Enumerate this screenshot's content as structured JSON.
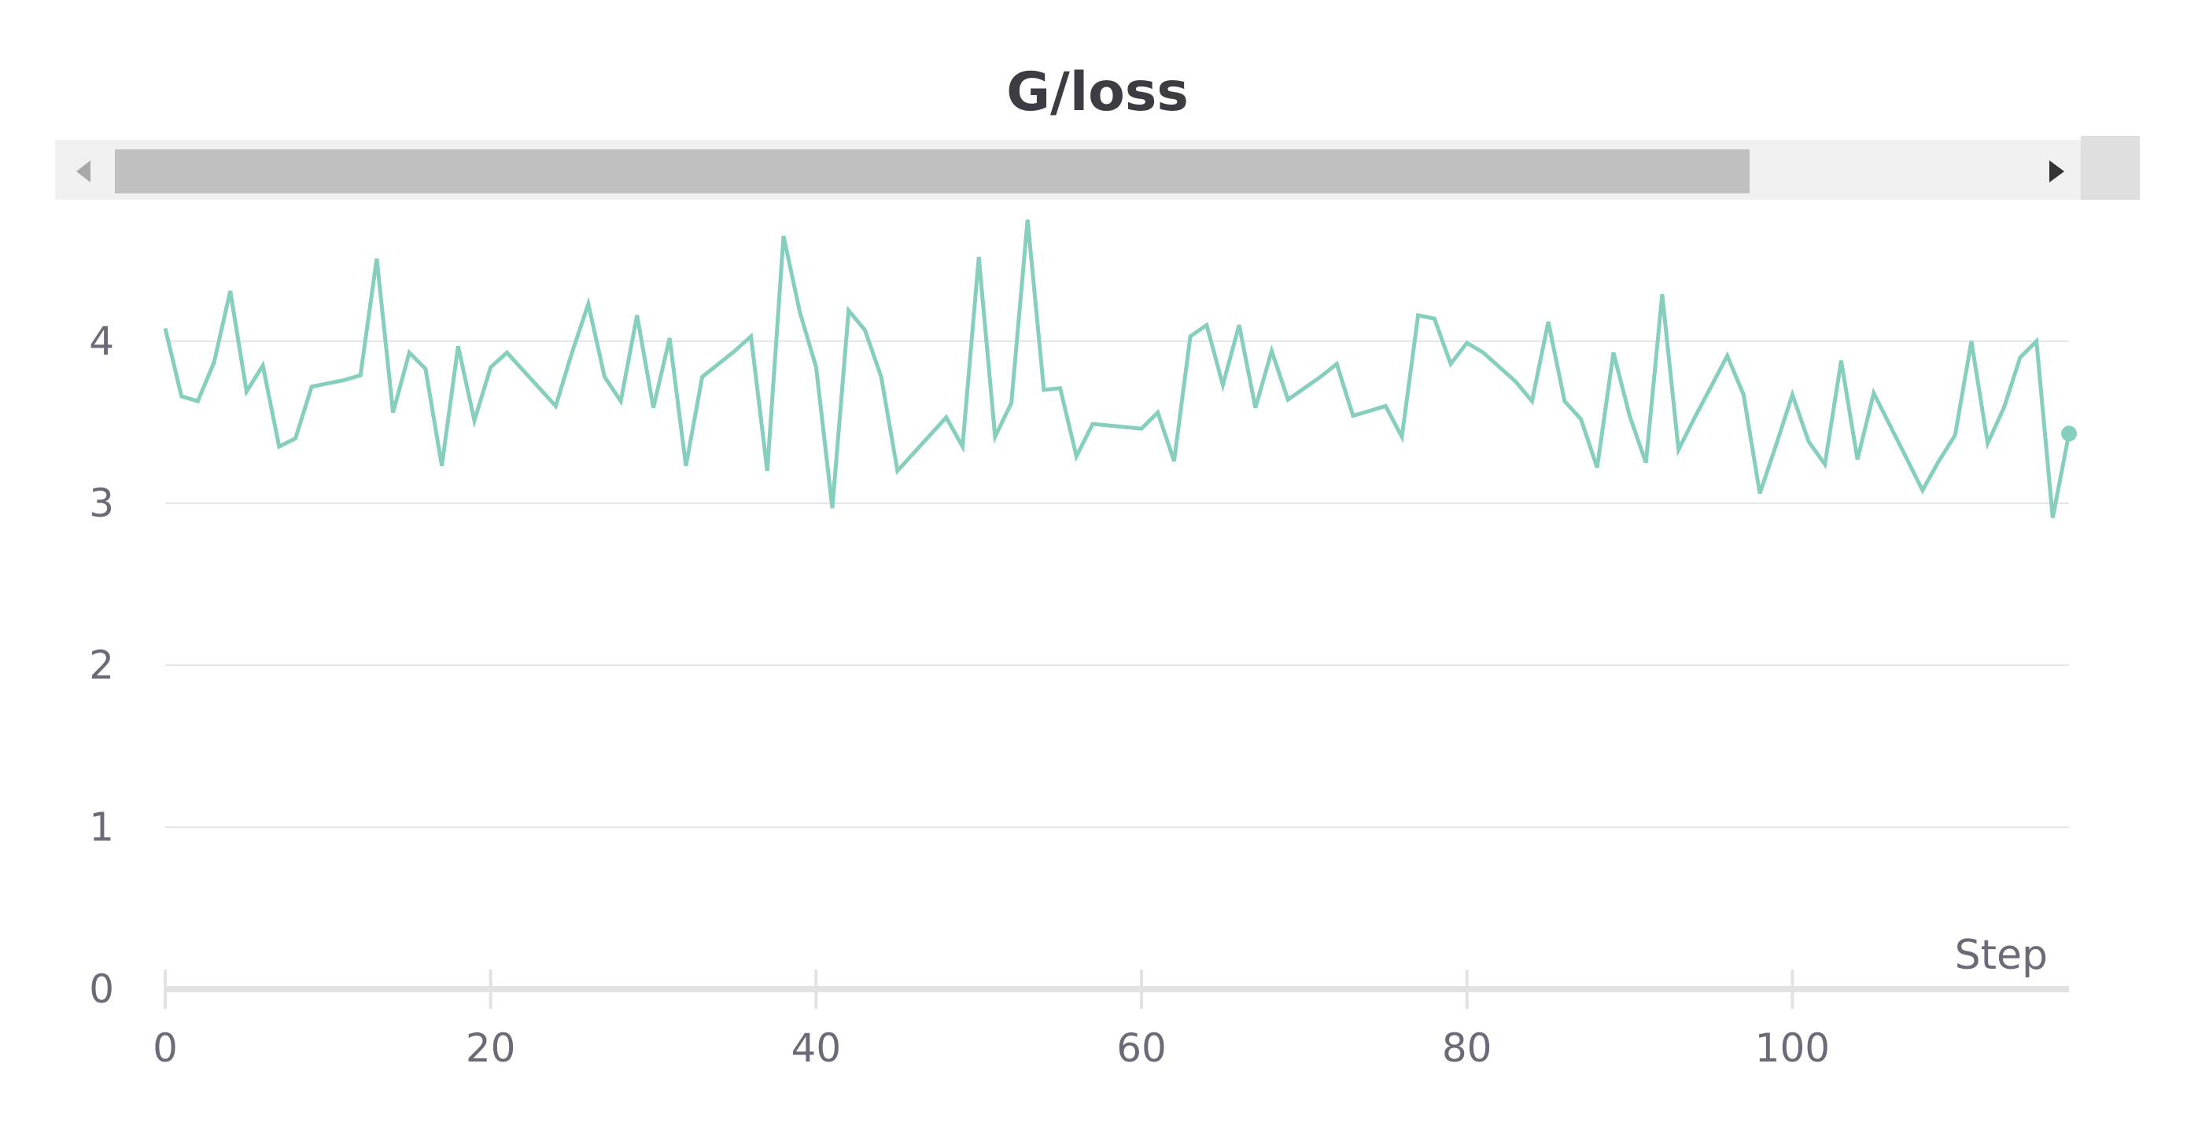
{
  "chart_data": {
    "type": "line",
    "title": "G/loss",
    "xlabel": "Step",
    "ylabel": "",
    "xlim": [
      0,
      117
    ],
    "ylim": [
      0,
      4.6
    ],
    "x_ticks": [
      0,
      20,
      40,
      60,
      80,
      100
    ],
    "y_ticks": [
      0,
      1,
      2,
      3,
      4
    ],
    "grid": true,
    "legend": "none",
    "colors": {
      "series": "#86cfbe",
      "grid": "#e6e6e6",
      "text": "#6b6b78",
      "title": "#3c3c42",
      "scrollbar_track": "#f0f0f0",
      "scrollbar_thumb": "#c0c0c0"
    },
    "series": [
      {
        "x": [
          0,
          1,
          2,
          3,
          4,
          5,
          6,
          7,
          8,
          9,
          10,
          11,
          12,
          13,
          14,
          15,
          16,
          17,
          18,
          19,
          20,
          21,
          22,
          23,
          24,
          25,
          26,
          27,
          28,
          29,
          30,
          31,
          32,
          33,
          34,
          35,
          36,
          37,
          38,
          39,
          40,
          41,
          42,
          43,
          44,
          45,
          46,
          47,
          48,
          49,
          50,
          51,
          52,
          53,
          54,
          55,
          56,
          57,
          58,
          59,
          60,
          61,
          62,
          63,
          64,
          65,
          66,
          67,
          68,
          69,
          70,
          71,
          72,
          73,
          74,
          75,
          76,
          77,
          78,
          79,
          80,
          81,
          82,
          83,
          84,
          85,
          86,
          87,
          88,
          89,
          90,
          91,
          92,
          93,
          94,
          95,
          96,
          97,
          98,
          99,
          100,
          101,
          102,
          103,
          104,
          105,
          106,
          107,
          108,
          109,
          110,
          111,
          112,
          113,
          114,
          115,
          116,
          117
        ],
        "values": [
          4.08,
          3.66,
          3.63,
          3.87,
          4.31,
          3.69,
          3.85,
          3.35,
          3.4,
          3.72,
          3.74,
          3.76,
          3.79,
          4.51,
          3.56,
          3.93,
          3.83,
          3.23,
          3.97,
          3.51,
          3.84,
          3.93,
          3.82,
          3.71,
          3.6,
          3.93,
          4.23,
          3.78,
          3.63,
          4.16,
          3.59,
          4.02,
          3.23,
          3.78,
          3.86,
          3.94,
          4.03,
          3.2,
          4.65,
          4.18,
          3.84,
          2.97,
          4.19,
          4.07,
          3.78,
          3.2,
          3.31,
          3.42,
          3.53,
          3.35,
          4.52,
          3.41,
          3.62,
          4.75,
          3.7,
          3.71,
          3.29,
          3.49,
          3.48,
          3.47,
          3.46,
          3.56,
          3.26,
          4.03,
          4.1,
          3.73,
          4.1,
          3.59,
          3.94,
          3.64,
          3.71,
          3.78,
          3.86,
          3.54,
          3.57,
          3.6,
          3.41,
          4.16,
          4.14,
          3.86,
          3.99,
          3.93,
          3.84,
          3.75,
          3.63,
          4.12,
          3.63,
          3.52,
          3.22,
          3.93,
          3.54,
          3.25,
          4.29,
          3.33,
          3.53,
          3.72,
          3.91,
          3.67,
          3.06,
          3.36,
          3.67,
          3.38,
          3.24,
          3.88,
          3.27,
          3.68,
          3.48,
          3.28,
          3.08,
          3.26,
          3.42,
          4.0,
          3.37,
          3.59,
          3.9,
          4.0,
          2.91,
          3.43
        ]
      }
    ]
  }
}
